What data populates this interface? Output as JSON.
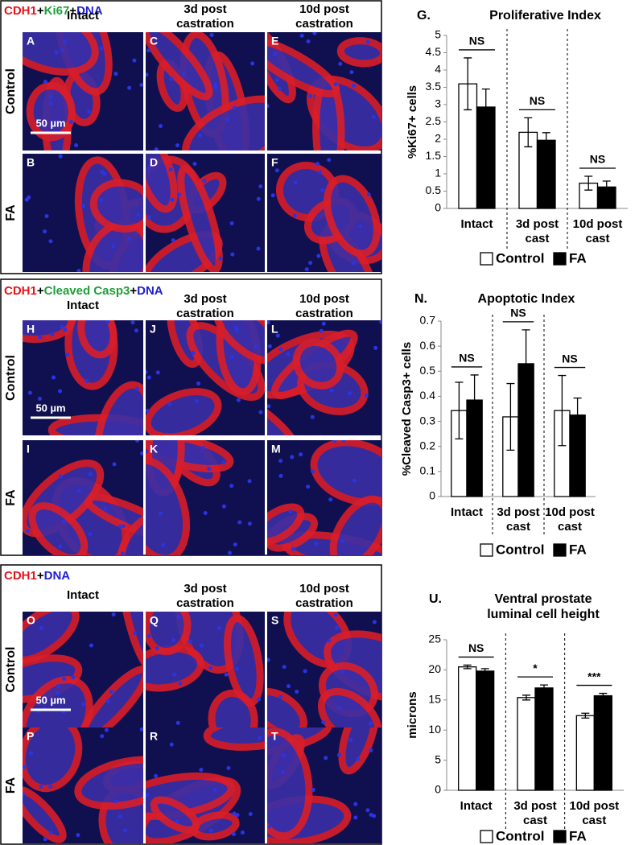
{
  "figure_rows": [
    {
      "stain": [
        {
          "text": "CDH1",
          "color": "#e8141b"
        },
        {
          "text": "+",
          "color": "#000000"
        },
        {
          "text": "Ki67",
          "color": "#1e9e3a"
        },
        {
          "text": "+",
          "color": "#000000"
        },
        {
          "text": "DNA",
          "color": "#1f1fd1"
        }
      ],
      "columns": [
        [
          "Intact"
        ],
        [
          "3d post",
          "castration"
        ],
        [
          "10d post",
          "castration"
        ]
      ],
      "rows": [
        "Control",
        "FA"
      ],
      "panels": [
        [
          "A",
          "C",
          "E"
        ],
        [
          "B",
          "D",
          "F"
        ]
      ],
      "scale_bar": "50 µm"
    },
    {
      "stain": [
        {
          "text": "CDH1",
          "color": "#e8141b"
        },
        {
          "text": "+",
          "color": "#000000"
        },
        {
          "text": "Cleaved Casp3",
          "color": "#1e9e3a"
        },
        {
          "text": "+",
          "color": "#000000"
        },
        {
          "text": "DNA",
          "color": "#1f1fd1"
        }
      ],
      "columns": [
        [
          "Intact"
        ],
        [
          "3d post",
          "castration"
        ],
        [
          "10d post",
          "castration"
        ]
      ],
      "rows": [
        "Control",
        "FA"
      ],
      "panels": [
        [
          "H",
          "J",
          "L"
        ],
        [
          "I",
          "K",
          "M"
        ]
      ],
      "scale_bar": "50 µm"
    },
    {
      "stain": [
        {
          "text": "CDH1",
          "color": "#e8141b"
        },
        {
          "text": "+",
          "color": "#000000"
        },
        {
          "text": "DNA",
          "color": "#1f1fd1"
        }
      ],
      "columns": [
        [
          "Intact"
        ],
        [
          "3d post",
          "castration"
        ],
        [
          "10d post",
          "castration"
        ]
      ],
      "rows": [
        "Control",
        "FA"
      ],
      "panels": [
        [
          "O",
          "Q",
          "S"
        ],
        [
          "P",
          "R",
          "T"
        ]
      ],
      "scale_bar": "50 µm"
    }
  ],
  "chart_data": [
    {
      "type": "bar",
      "panel": "G.",
      "title": [
        "Proliferative Index"
      ],
      "y_label": "%Ki67+ cells",
      "categories": [
        [
          "Intact"
        ],
        [
          "3d post",
          "cast"
        ],
        [
          "10d post",
          "cast"
        ]
      ],
      "series": [
        {
          "name": "Control",
          "color": "#ffffff",
          "values": [
            3.6,
            2.2,
            0.73
          ],
          "errors": [
            0.75,
            0.42,
            0.2
          ]
        },
        {
          "name": "FA",
          "color": "#000000",
          "values": [
            2.93,
            1.97,
            0.62
          ],
          "errors": [
            0.52,
            0.22,
            0.17
          ]
        }
      ],
      "annotations": [
        "NS",
        "NS",
        "NS"
      ],
      "ylim": [
        0,
        5
      ],
      "yticks": [
        0,
        0.5,
        1,
        1.5,
        2,
        2.5,
        3,
        3.5,
        4,
        4.5,
        5
      ],
      "legend": "bottom"
    },
    {
      "type": "bar",
      "panel": "N.",
      "title": [
        "Apoptotic Index"
      ],
      "y_label": "%Cleaved Casp3+ cells",
      "categories": [
        [
          "Intact"
        ],
        [
          "3d post",
          "cast"
        ],
        [
          "10d post",
          "cast"
        ]
      ],
      "series": [
        {
          "name": "Control",
          "color": "#ffffff",
          "values": [
            0.343,
            0.318,
            0.343
          ],
          "errors": [
            0.113,
            0.133,
            0.14
          ]
        },
        {
          "name": "FA",
          "color": "#000000",
          "values": [
            0.385,
            0.53,
            0.325
          ],
          "errors": [
            0.1,
            0.135,
            0.068
          ]
        }
      ],
      "annotations": [
        "NS",
        "NS",
        "NS"
      ],
      "ylim": [
        0,
        0.7
      ],
      "yticks": [
        0,
        0.1,
        0.2,
        0.3,
        0.4,
        0.5,
        0.6,
        0.7
      ],
      "legend": "bottom"
    },
    {
      "type": "bar",
      "panel": "U.",
      "title": [
        "Ventral prostate",
        "luminal cell height"
      ],
      "y_label": "microns",
      "categories": [
        [
          "Intact"
        ],
        [
          "3d post",
          "cast"
        ],
        [
          "10d post",
          "cast"
        ]
      ],
      "series": [
        {
          "name": "Control",
          "color": "#ffffff",
          "values": [
            20.5,
            15.4,
            12.4
          ],
          "errors": [
            0.3,
            0.4,
            0.4
          ]
        },
        {
          "name": "FA",
          "color": "#000000",
          "values": [
            19.8,
            17.0,
            15.7
          ],
          "errors": [
            0.4,
            0.5,
            0.4
          ]
        }
      ],
      "annotations": [
        "NS",
        "*",
        "***"
      ],
      "ylim": [
        0,
        25
      ],
      "yticks": [
        0,
        5,
        10,
        15,
        20,
        25
      ],
      "legend": "bottom"
    }
  ]
}
